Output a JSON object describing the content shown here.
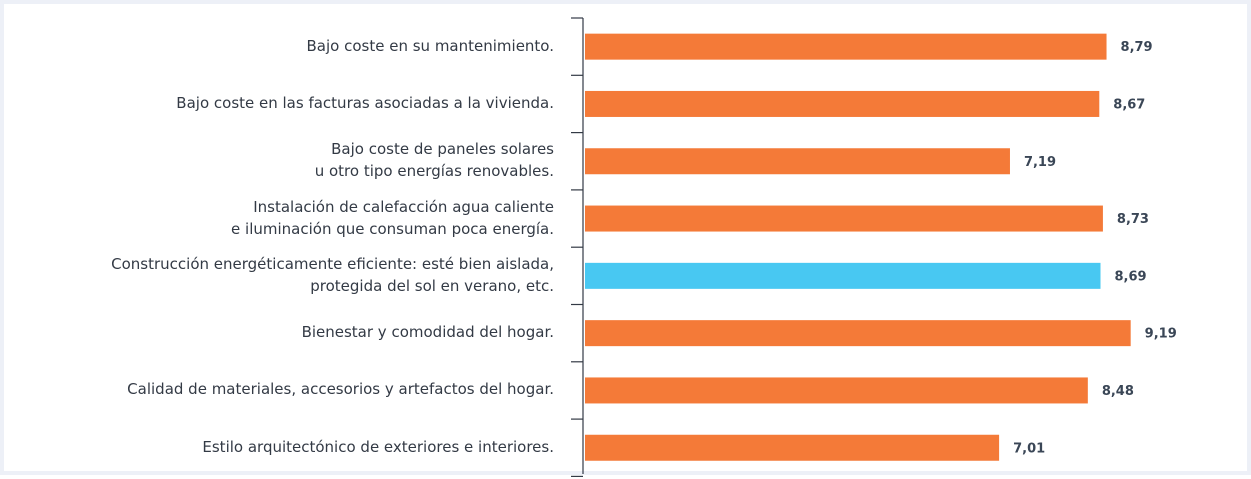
{
  "chart_data": {
    "type": "bar",
    "orientation": "horizontal",
    "categories": [
      "Bajo coste en su mantenimiento.",
      "Bajo coste en las facturas asociadas a la vivienda.",
      "Bajo coste de paneles solares\nu otro tipo energías renovables.",
      "Instalación de calefacción agua caliente\ne iluminación que consuman poca energía.",
      "Construcción energéticamente eficiente: esté bien aislada,\nprotegida del sol en verano, etc.",
      "Bienestar y comodidad del hogar.",
      "Calidad de materiales, accesorios y artefactos del hogar.",
      "Estilo arquitectónico de exteriores e interiores."
    ],
    "values": [
      8.79,
      8.67,
      7.19,
      8.73,
      8.69,
      9.19,
      8.48,
      7.01
    ],
    "value_labels": [
      "8,79",
      "8,67",
      "7,19",
      "8,73",
      "8,69",
      "9,19",
      "8,48",
      "7,01"
    ],
    "colors": [
      "#f47a38",
      "#f47a38",
      "#f47a38",
      "#f47a38",
      "#48c8f2",
      "#f47a38",
      "#f47a38",
      "#f47a38"
    ],
    "xlim": [
      0,
      11.2
    ]
  }
}
